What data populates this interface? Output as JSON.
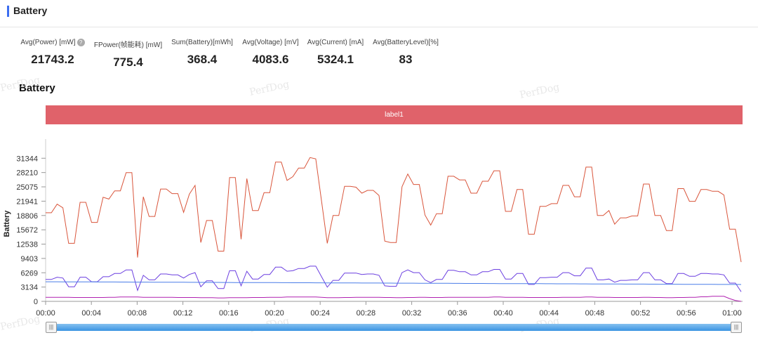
{
  "header": {
    "title": "Battery"
  },
  "stats": [
    {
      "label": "Avg(Power) [mW]",
      "value": "21743.2",
      "help": "?"
    },
    {
      "label": "FPower(帧能耗) [mW]",
      "value": "775.4"
    },
    {
      "label": "Sum(Battery)[mWh]",
      "value": "368.4"
    },
    {
      "label": "Avg(Voltage) [mV]",
      "value": "4083.6"
    },
    {
      "label": "Avg(Current) [mA]",
      "value": "5324.1"
    },
    {
      "label": "Avg(BatteryLevel)[%]",
      "value": "83"
    }
  ],
  "section_title": "Battery",
  "label_bar": "label1",
  "watermark": "PerfDog",
  "slider": {
    "left_handle": "|||",
    "right_handle": "|||"
  },
  "colors": {
    "accent": "#3c6df0",
    "label_bar": "#e0626a",
    "power": "#d9553b",
    "current": "#6b3fe0",
    "voltage": "#4a7de8",
    "level": "#b020b0"
  },
  "chart_data": {
    "type": "line",
    "ylabel": "Battery",
    "y_ticks": [
      "0",
      "3134",
      "6269",
      "9403",
      "12538",
      "15672",
      "18806",
      "21941",
      "25075",
      "28210",
      "31344"
    ],
    "ylim": [
      0,
      34000
    ],
    "x_ticks": [
      "00:00",
      "00:04",
      "00:08",
      "00:12",
      "00:16",
      "00:20",
      "00:24",
      "00:28",
      "00:32",
      "00:36",
      "00:40",
      "00:44",
      "00:48",
      "00:52",
      "00:56",
      "01:00"
    ],
    "x_range_seconds": [
      0,
      60
    ],
    "series": [
      {
        "values": [
          19400,
          19400,
          21300,
          20500,
          12700,
          12700,
          21700,
          21700,
          17300,
          17300,
          22800,
          22400,
          24200,
          24200,
          28200,
          28200,
          9600,
          22900,
          18600,
          18600,
          24600,
          24600,
          23600,
          23600,
          19500,
          23500,
          25400,
          12900,
          17700,
          17700,
          11000,
          11000,
          27100,
          27100,
          13600,
          26900,
          19900,
          19900,
          23800,
          23800,
          30500,
          30500,
          26500,
          27300,
          29200,
          29200,
          31500,
          31200,
          22000,
          12700,
          18800,
          18800,
          25200,
          25200,
          25000,
          23700,
          24300,
          24300,
          23200,
          13200,
          12900,
          12900,
          25100,
          27900,
          25600,
          25600,
          18900,
          16700,
          19200,
          19200,
          27400,
          27400,
          26600,
          26600,
          23700,
          23700,
          26300,
          26300,
          28600,
          28600,
          19700,
          19700,
          24500,
          24500,
          14700,
          14700,
          20800,
          20800,
          21400,
          21400,
          25400,
          25400,
          22900,
          22900,
          29400,
          29400,
          18800,
          18800,
          19900,
          16900,
          18300,
          18300,
          18700,
          18700,
          25700,
          25700,
          18800,
          18800,
          15500,
          15500,
          24700,
          24700,
          21900,
          21900,
          24500,
          24500,
          24100,
          24100,
          23300,
          15800,
          15800,
          8600
        ]
      },
      {
        "values": [
          4800,
          4800,
          5300,
          5100,
          3200,
          3200,
          5300,
          5300,
          4300,
          4300,
          5400,
          5400,
          6100,
          6100,
          6900,
          6900,
          2400,
          5700,
          4700,
          4700,
          6000,
          6000,
          5800,
          5800,
          5100,
          5900,
          6300,
          3200,
          4500,
          4500,
          2800,
          2800,
          6700,
          6700,
          3400,
          6600,
          4900,
          4900,
          5900,
          5900,
          7500,
          7500,
          6600,
          6700,
          7200,
          7200,
          7700,
          7700,
          5400,
          3100,
          4600,
          4600,
          6200,
          6200,
          6200,
          5900,
          6000,
          6000,
          5700,
          3400,
          3300,
          3300,
          6300,
          6900,
          6300,
          6300,
          4700,
          4100,
          4800,
          4800,
          6800,
          6800,
          6500,
          6500,
          5800,
          5800,
          6500,
          6500,
          7000,
          7000,
          4900,
          4900,
          6100,
          6100,
          3700,
          3700,
          5200,
          5200,
          5300,
          5300,
          6300,
          6300,
          5600,
          5600,
          7300,
          7300,
          4700,
          4700,
          4900,
          4200,
          4600,
          4600,
          4700,
          4700,
          6300,
          6300,
          4700,
          4700,
          3900,
          3900,
          6100,
          6100,
          5500,
          5500,
          6100,
          6100,
          6000,
          6000,
          5800,
          4000,
          4000,
          2100
        ]
      },
      {
        "values": [
          4300,
          4300,
          4300,
          4280,
          4280,
          4270,
          4270,
          4260,
          4260,
          4250,
          4250,
          4240,
          4240,
          4230,
          4230,
          4220,
          4220,
          4210,
          4210,
          4200,
          4200,
          4190,
          4190,
          4180,
          4180,
          4170,
          4170,
          4160,
          4160,
          4150,
          4150,
          4140,
          4140,
          4130,
          4130,
          4120,
          4120,
          4110,
          4110,
          4100,
          4100,
          4090,
          4090,
          4080,
          4080,
          4070,
          4070,
          4060,
          4060,
          4050,
          4050,
          4040,
          4040,
          4030,
          4030,
          4020,
          4020,
          4010,
          4010,
          4000,
          4000,
          3990,
          3990,
          3980,
          3980,
          3970,
          3970,
          3960,
          3960,
          3950,
          3950,
          3940,
          3940,
          3930,
          3930,
          3920,
          3920,
          3910,
          3910,
          3900,
          3900,
          3890,
          3890,
          3880,
          3880,
          3870,
          3870,
          3860,
          3860,
          3850,
          3850,
          3840,
          3840,
          3830,
          3830,
          3820,
          3820,
          3810,
          3810,
          3800,
          3800,
          3790,
          3790,
          3780,
          3780,
          3770,
          3770,
          3760,
          3760,
          3750,
          3750,
          3740,
          3740,
          3730,
          3730,
          3720,
          3720,
          3710,
          3710,
          3700,
          3700,
          3690
        ]
      },
      {
        "values": [
          900,
          900,
          900,
          900,
          900,
          850,
          850,
          850,
          850,
          850,
          850,
          900,
          900,
          950,
          950,
          950,
          950,
          900,
          900,
          900,
          900,
          900,
          900,
          850,
          850,
          850,
          850,
          800,
          800,
          800,
          750,
          750,
          800,
          800,
          800,
          800,
          850,
          850,
          850,
          900,
          900,
          900,
          950,
          950,
          950,
          950,
          950,
          950,
          900,
          800,
          800,
          800,
          850,
          850,
          900,
          900,
          900,
          900,
          900,
          850,
          850,
          800,
          800,
          850,
          850,
          900,
          900,
          850,
          850,
          850,
          900,
          900,
          900,
          900,
          900,
          900,
          900,
          900,
          950,
          950,
          900,
          900,
          900,
          900,
          850,
          850,
          850,
          850,
          850,
          850,
          900,
          900,
          900,
          900,
          950,
          950,
          900,
          900,
          900,
          850,
          850,
          850,
          850,
          850,
          900,
          900,
          850,
          850,
          800,
          800,
          850,
          850,
          900,
          900,
          1000,
          1000,
          1100,
          1100,
          1100,
          600,
          200,
          0
        ]
      }
    ]
  }
}
